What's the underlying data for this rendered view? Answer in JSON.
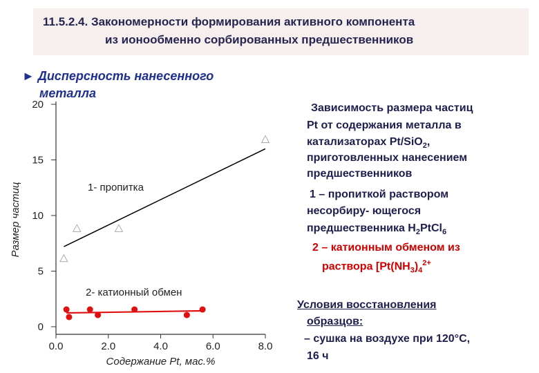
{
  "slide": {
    "title": [
      "11.5.2.4. Закономерности формирования активного компонента",
      "из ионообменно сорбированных предшественников"
    ],
    "bullet": [
      "► Дисперсность нанесенного",
      "металла"
    ],
    "caption": [
      [
        "Зависимость размера частиц"
      ],
      [
        "Pt от содержания металла в"
      ],
      [
        "катализаторах Pt/SiO",
        {
          "sub": "2"
        },
        ","
      ],
      [
        "приготовленных нанесением"
      ],
      [
        "предшественников"
      ],
      [
        "1 – пропиткой раствором"
      ],
      [
        "несорбиру- ющегося"
      ],
      [
        "предшественника H",
        {
          "sub": "2"
        },
        "PtCl",
        {
          "sub": "6"
        }
      ],
      [
        "2 – катионным обменом из"
      ],
      [
        "раствора   [Pt(NH",
        {
          "sub": "3"
        },
        ")",
        {
          "sub": "4"
        },
        {
          "sup": "2+"
        }
      ]
    ],
    "conditions": [
      "Условия восстановления",
      "образцов:",
      "– сушка на воздухе при 120°С,",
      "16 ч"
    ]
  },
  "chart_data": {
    "type": "scatter",
    "xlabel": "Содержание Pt, мас.%",
    "ylabel": "Размер частиц",
    "xlim": [
      0,
      8
    ],
    "ylim": [
      0,
      20
    ],
    "xticks": [
      {
        "value": 0,
        "label": "0.0"
      },
      {
        "value": 2,
        "label": "2.0"
      },
      {
        "value": 4,
        "label": "4.0"
      },
      {
        "value": 6,
        "label": "6.0"
      },
      {
        "value": 8,
        "label": "8.0"
      }
    ],
    "yticks": [
      0,
      5,
      10,
      15,
      20
    ],
    "series": [
      {
        "name": "1- пропитка",
        "color": "#aaaaaa",
        "line_color": "#000000",
        "marker": "triangle",
        "x": [
          0.3,
          0.8,
          2.4,
          8.0
        ],
        "values": [
          6.1,
          8.8,
          8.8,
          16.8
        ],
        "trend": {
          "x": [
            0.3,
            8.0
          ],
          "values": [
            7.2,
            16.0
          ]
        }
      },
      {
        "name": "2- катионный обмен",
        "color": "#e01010",
        "line_color": "#e01010",
        "marker": "circle",
        "x": [
          0.4,
          0.5,
          1.3,
          1.6,
          3.0,
          5.0,
          5.6
        ],
        "values": [
          1.55,
          0.87,
          1.55,
          1.05,
          1.55,
          1.05,
          1.55
        ],
        "trend": {
          "x": [
            0.4,
            5.6
          ],
          "values": [
            1.24,
            1.43
          ]
        }
      }
    ]
  }
}
